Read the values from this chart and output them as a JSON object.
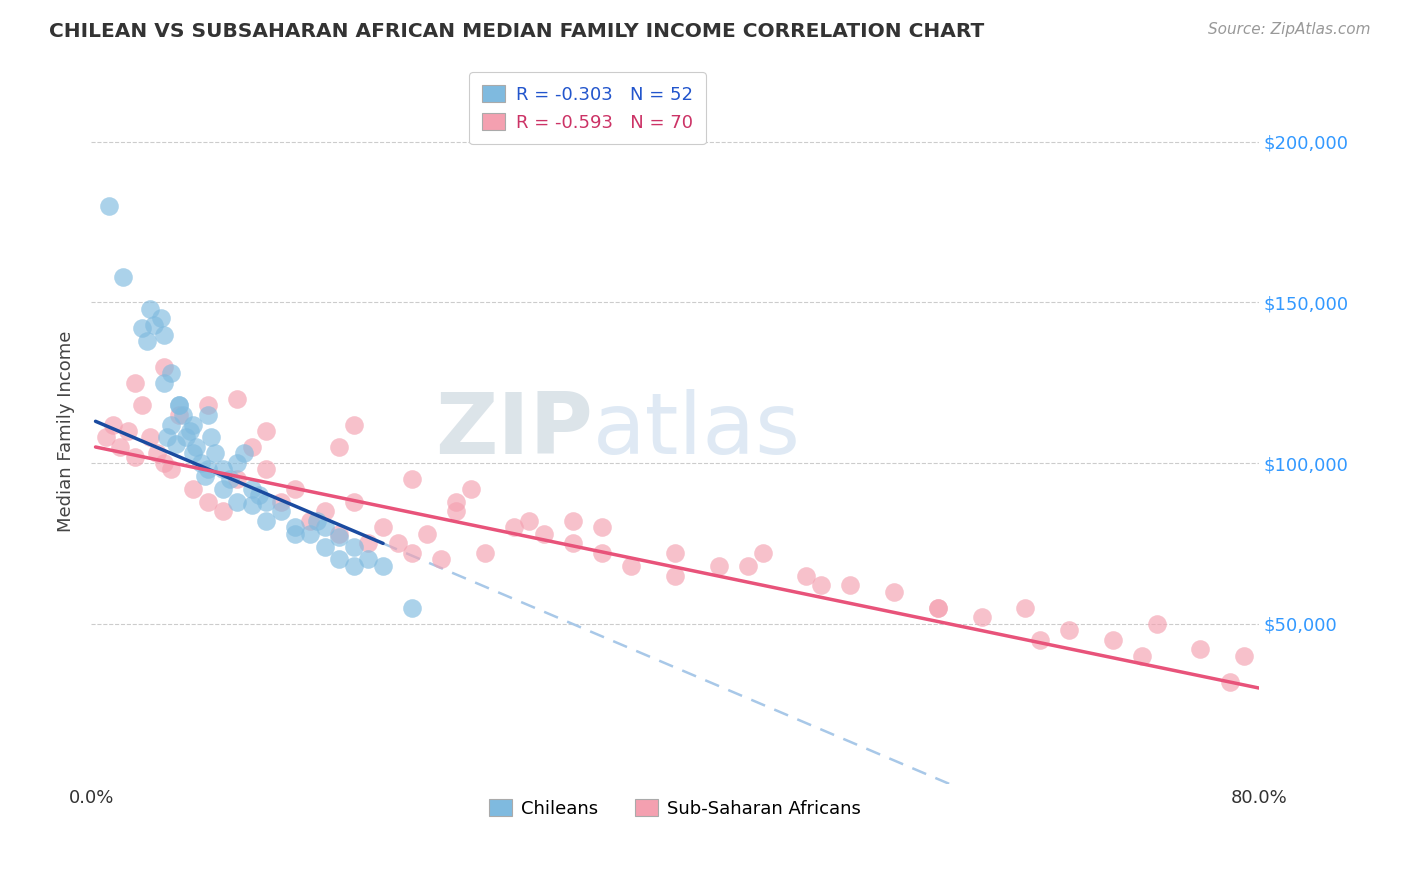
{
  "title": "CHILEAN VS SUBSAHARAN AFRICAN MEDIAN FAMILY INCOME CORRELATION CHART",
  "source_text": "Source: ZipAtlas.com",
  "ylabel": "Median Family Income",
  "yticks": [
    0,
    50000,
    100000,
    150000,
    200000
  ],
  "ytick_labels_right": [
    "",
    "$50,000",
    "$100,000",
    "$150,000",
    "$200,000"
  ],
  "xmin": 0.0,
  "xmax": 80.0,
  "ymin": 0,
  "ymax": 220000,
  "chilean_color": "#7FBADF",
  "subsaharan_color": "#F4A0B0",
  "blue_line_color": "#1A4BA0",
  "pink_line_color": "#E8537A",
  "dashed_line_color": "#A8C8E8",
  "watermark_ZIP": "ZIP",
  "watermark_atlas": "atlas",
  "legend_R_blue": "R = -0.303",
  "legend_N_blue": "N = 52",
  "legend_R_pink": "R = -0.593",
  "legend_N_pink": "N = 70",
  "legend_label_blue": "Chileans",
  "legend_label_pink": "Sub-Saharan Africans",
  "blue_line_x0": 0.3,
  "blue_line_x1": 20.0,
  "blue_line_y0": 113000,
  "blue_line_y1": 75000,
  "pink_line_x0": 0.3,
  "pink_line_x1": 80.0,
  "pink_line_y0": 105000,
  "pink_line_y1": 30000,
  "dashed_line_x0": 20.0,
  "dashed_line_x1": 80.0,
  "chilean_x": [
    1.2,
    2.2,
    3.5,
    3.8,
    4.0,
    4.3,
    4.8,
    5.0,
    5.2,
    5.5,
    5.8,
    6.0,
    6.3,
    6.5,
    6.8,
    7.0,
    7.2,
    7.5,
    7.8,
    8.0,
    8.2,
    8.5,
    9.0,
    9.5,
    10.0,
    10.5,
    11.0,
    11.5,
    12.0,
    13.0,
    14.0,
    15.0,
    15.5,
    16.0,
    17.0,
    18.0,
    19.0,
    20.0,
    5.0,
    5.5,
    6.0,
    7.0,
    8.0,
    9.0,
    10.0,
    11.0,
    12.0,
    14.0,
    16.0,
    17.0,
    18.0,
    22.0
  ],
  "chilean_y": [
    180000,
    158000,
    142000,
    138000,
    148000,
    143000,
    145000,
    140000,
    108000,
    112000,
    106000,
    118000,
    115000,
    108000,
    110000,
    103000,
    105000,
    100000,
    96000,
    115000,
    108000,
    103000,
    98000,
    95000,
    100000,
    103000,
    92000,
    90000,
    88000,
    85000,
    80000,
    78000,
    82000,
    80000,
    77000,
    74000,
    70000,
    68000,
    125000,
    128000,
    118000,
    112000,
    98000,
    92000,
    88000,
    87000,
    82000,
    78000,
    74000,
    70000,
    68000,
    55000
  ],
  "subsaharan_x": [
    1.0,
    1.5,
    2.0,
    2.5,
    3.0,
    3.5,
    4.0,
    4.5,
    5.0,
    5.5,
    6.0,
    7.0,
    8.0,
    9.0,
    10.0,
    11.0,
    12.0,
    13.0,
    14.0,
    15.0,
    16.0,
    17.0,
    18.0,
    19.0,
    20.0,
    21.0,
    22.0,
    23.0,
    24.0,
    25.0,
    27.0,
    29.0,
    31.0,
    33.0,
    35.0,
    37.0,
    40.0,
    43.0,
    46.0,
    49.0,
    52.0,
    55.0,
    58.0,
    61.0,
    64.0,
    67.0,
    70.0,
    73.0,
    76.0,
    79.0,
    3.0,
    5.0,
    8.0,
    12.0,
    17.0,
    22.0,
    26.0,
    30.0,
    35.0,
    40.0,
    45.0,
    50.0,
    58.0,
    65.0,
    72.0,
    78.0,
    10.0,
    18.0,
    25.0,
    33.0
  ],
  "subsaharan_y": [
    108000,
    112000,
    105000,
    110000,
    102000,
    118000,
    108000,
    103000,
    100000,
    98000,
    115000,
    92000,
    88000,
    85000,
    95000,
    105000,
    98000,
    88000,
    92000,
    82000,
    85000,
    78000,
    88000,
    75000,
    80000,
    75000,
    72000,
    78000,
    70000,
    85000,
    72000,
    80000,
    78000,
    75000,
    72000,
    68000,
    65000,
    68000,
    72000,
    65000,
    62000,
    60000,
    55000,
    52000,
    55000,
    48000,
    45000,
    50000,
    42000,
    40000,
    125000,
    130000,
    118000,
    110000,
    105000,
    95000,
    92000,
    82000,
    80000,
    72000,
    68000,
    62000,
    55000,
    45000,
    40000,
    32000,
    120000,
    112000,
    88000,
    82000
  ]
}
